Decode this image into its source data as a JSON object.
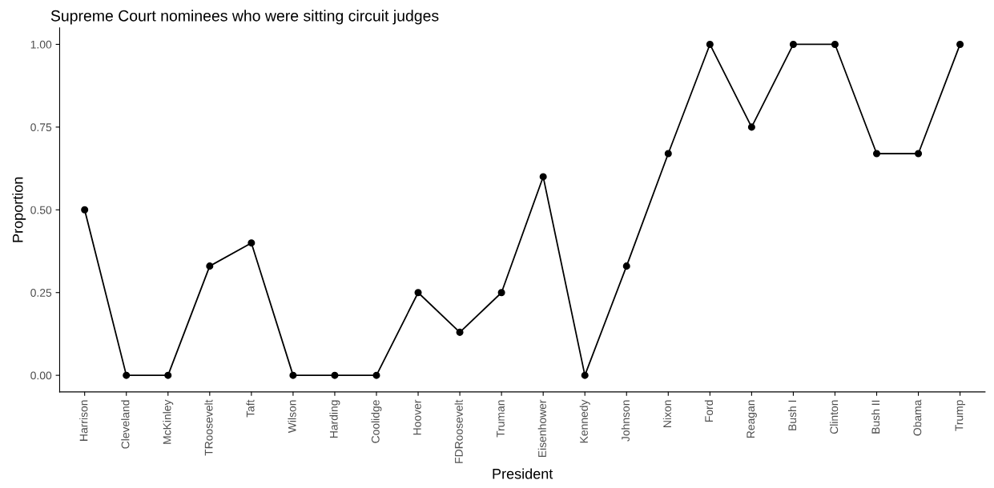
{
  "chart_data": {
    "type": "line",
    "title": "Supreme Court nominees who were sitting circuit judges",
    "xlabel": "President",
    "ylabel": "Proportion",
    "categories": [
      "Harrison",
      "Cleveland",
      "McKinley",
      "TRoosevelt",
      "Taft",
      "Wilson",
      "Harding",
      "Coolidge",
      "Hoover",
      "FDRoosevelt",
      "Truman",
      "Eisenhower",
      "Kennedy",
      "Johnson",
      "Nixon",
      "Ford",
      "Reagan",
      "Bush I",
      "Clinton",
      "Bush II",
      "Obama",
      "Trump"
    ],
    "series": [
      {
        "color": "#000000",
        "values": [
          0.5,
          0,
          0,
          0.33,
          0.4,
          0,
          0,
          0,
          0.25,
          0.13,
          0.25,
          0.6,
          0,
          0.33,
          0.67,
          1,
          0.75,
          1,
          1,
          0.67,
          0.67,
          1
        ]
      }
    ],
    "ylim": [
      -0.05,
      1.05
    ],
    "yticks": [
      {
        "value": 0,
        "label": "0.00"
      },
      {
        "value": 0.25,
        "label": "0.25"
      },
      {
        "value": 0.5,
        "label": "0.50"
      },
      {
        "value": 0.75,
        "label": "0.75"
      },
      {
        "value": 1,
        "label": "1.00"
      }
    ],
    "marker": "circle",
    "line_style": "solid",
    "grid": false,
    "legend": false
  }
}
